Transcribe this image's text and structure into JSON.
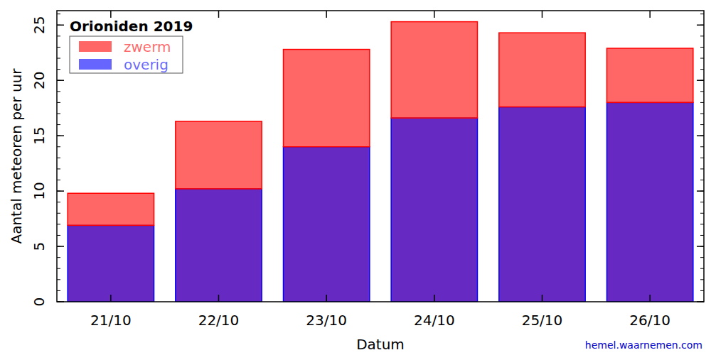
{
  "chart_data": {
    "type": "bar",
    "title": "Orioniden 2019",
    "x_label": "Datum",
    "y_label": "Aantal meteoren per uur",
    "annotations": [
      "hemel.waarnemen.com"
    ],
    "categories": [
      "21/10",
      "22/10",
      "23/10",
      "24/10",
      "25/10",
      "26/10"
    ],
    "series": [
      {
        "name": "overig",
        "color": "#0000ff",
        "values": [
          6.9,
          10.2,
          14.0,
          16.6,
          17.6,
          18.0
        ]
      },
      {
        "name": "zwerm",
        "color": "#ff0000",
        "values": [
          2.9,
          6.1,
          8.8,
          8.7,
          6.7,
          4.9
        ]
      }
    ],
    "stacked": true,
    "legend": "upper left",
    "ylim": [
      0,
      26.3
    ],
    "yticks": [
      0,
      5,
      10,
      15,
      20,
      25
    ],
    "grid": false
  }
}
